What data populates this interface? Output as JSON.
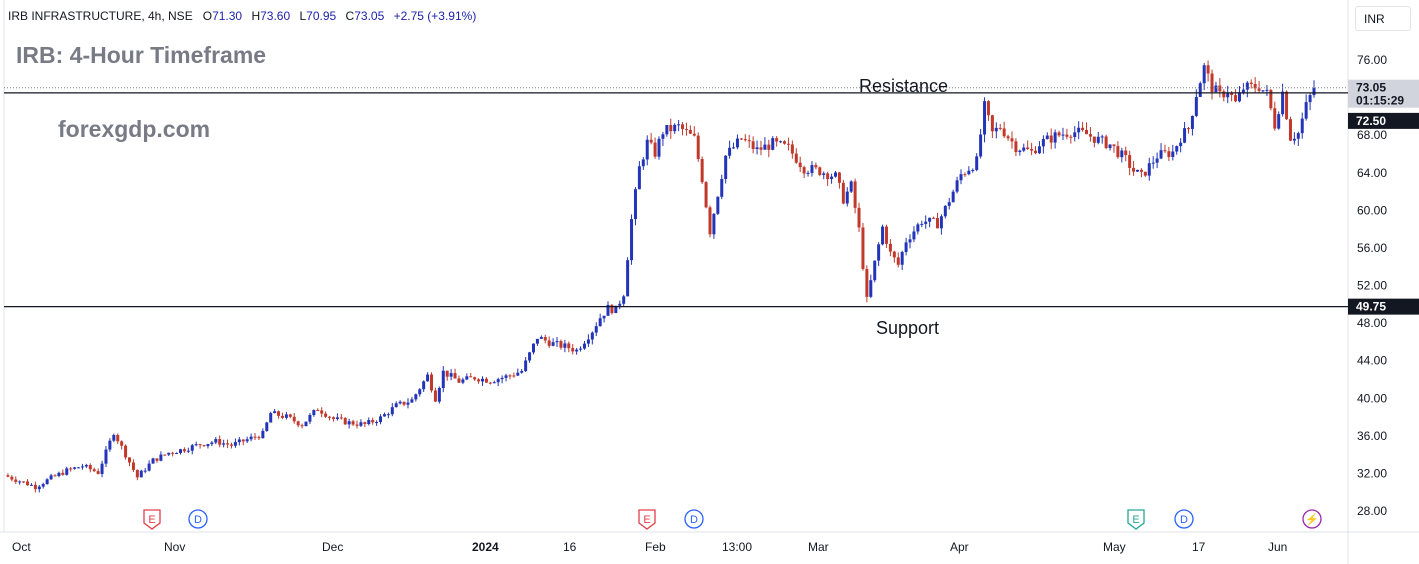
{
  "header": {
    "symbol": "IRB INFRASTRUCTURE, 4h, NSE",
    "open_label": "O",
    "open": "71.30",
    "high_label": "H",
    "high": "73.60",
    "low_label": "L",
    "low": "70.95",
    "close_label": "C",
    "close": "73.05",
    "change": "+2.75 (+3.91%)"
  },
  "title": "IRB: 4-Hour Timeframe",
  "watermark": "forexgdp.com",
  "currency": "INR",
  "annotations": {
    "resistance": "Resistance",
    "support": "Support"
  },
  "price_labels": {
    "last_price": "73.05",
    "countdown": "01:15:29",
    "resistance_level": "72.50",
    "support_level": "49.75"
  },
  "colors": {
    "up": "#2234b8",
    "down": "#c0392b",
    "axis_bg": "#ffffff",
    "last_price_bg": "#d1d4dc",
    "level_bg": "#131722"
  },
  "event_markers": [
    {
      "label": "E",
      "type": "earnings",
      "color": "#e0404a"
    },
    {
      "label": "D",
      "type": "dividend",
      "color": "#2962ff"
    },
    {
      "label": "E",
      "type": "earnings",
      "color": "#e0404a"
    },
    {
      "label": "D",
      "type": "dividend",
      "color": "#2962ff"
    },
    {
      "label": "E",
      "type": "earnings",
      "color": "#26a69a"
    },
    {
      "label": "D",
      "type": "dividend",
      "color": "#2962ff"
    },
    {
      "label": "⚡",
      "type": "flash",
      "color": "#9c27b0"
    }
  ],
  "chart_data": {
    "type": "candlestick",
    "title": "IRB: 4-Hour Timeframe",
    "y_axis_ticks": [
      "76.00",
      "72.00",
      "68.00",
      "64.00",
      "60.00",
      "56.00",
      "52.00",
      "48.00",
      "44.00",
      "40.00",
      "36.00",
      "32.00",
      "28.00"
    ],
    "ylim": [
      25,
      80
    ],
    "x_axis_ticks": [
      "Oct",
      "Nov",
      "Dec",
      "2024",
      "16",
      "Feb",
      "13:00",
      "Mar",
      "Apr",
      "May",
      "17",
      "Jun"
    ],
    "horizontal_levels": [
      {
        "name": "Resistance",
        "value": 72.5
      },
      {
        "name": "Support",
        "value": 49.75
      }
    ],
    "close_path": [
      [
        0,
        31.8
      ],
      [
        4,
        31.2
      ],
      [
        8,
        30.6
      ],
      [
        12,
        31.5
      ],
      [
        16,
        32.3
      ],
      [
        20,
        32.8
      ],
      [
        24,
        32.1
      ],
      [
        28,
        36.4
      ],
      [
        32,
        33.2
      ],
      [
        34,
        31.6
      ],
      [
        38,
        33.4
      ],
      [
        42,
        34.2
      ],
      [
        46,
        34.6
      ],
      [
        50,
        35.1
      ],
      [
        54,
        35.4
      ],
      [
        58,
        35.0
      ],
      [
        62,
        35.6
      ],
      [
        66,
        36.2
      ],
      [
        68,
        38.4
      ],
      [
        72,
        38.0
      ],
      [
        76,
        37.2
      ],
      [
        80,
        38.9
      ],
      [
        84,
        37.8
      ],
      [
        88,
        37.4
      ],
      [
        92,
        37.2
      ],
      [
        96,
        37.9
      ],
      [
        100,
        39.2
      ],
      [
        104,
        39.8
      ],
      [
        108,
        42.4
      ],
      [
        110,
        40.0
      ],
      [
        112,
        42.8
      ],
      [
        116,
        41.8
      ],
      [
        120,
        42.2
      ],
      [
        124,
        41.9
      ],
      [
        128,
        42.3
      ],
      [
        132,
        42.9
      ],
      [
        136,
        46.5
      ],
      [
        140,
        45.8
      ],
      [
        144,
        45.4
      ],
      [
        146,
        45.1
      ],
      [
        150,
        47.2
      ],
      [
        152,
        48.6
      ],
      [
        154,
        49.6
      ],
      [
        156,
        49.4
      ],
      [
        158,
        51.2
      ],
      [
        160,
        59.0
      ],
      [
        162,
        64.5
      ],
      [
        164,
        67.2
      ],
      [
        166,
        66.1
      ],
      [
        168,
        68.4
      ],
      [
        172,
        68.9
      ],
      [
        176,
        67.6
      ],
      [
        178,
        63.4
      ],
      [
        180,
        57.8
      ],
      [
        182,
        61.8
      ],
      [
        184,
        65.8
      ],
      [
        188,
        67.6
      ],
      [
        192,
        66.4
      ],
      [
        196,
        67.1
      ],
      [
        200,
        66.6
      ],
      [
        204,
        64.5
      ],
      [
        208,
        64.2
      ],
      [
        212,
        63.6
      ],
      [
        214,
        61.2
      ],
      [
        216,
        62.6
      ],
      [
        218,
        57.9
      ],
      [
        220,
        50.4
      ],
      [
        222,
        54.4
      ],
      [
        224,
        58.2
      ],
      [
        226,
        55.4
      ],
      [
        228,
        54.2
      ],
      [
        230,
        56.8
      ],
      [
        234,
        58.9
      ],
      [
        238,
        58.6
      ],
      [
        240,
        60.2
      ],
      [
        244,
        63.8
      ],
      [
        248,
        65.2
      ],
      [
        250,
        71.0
      ],
      [
        252,
        68.2
      ],
      [
        254,
        68.9
      ],
      [
        258,
        66.8
      ],
      [
        262,
        66.2
      ],
      [
        264,
        67.1
      ],
      [
        268,
        67.9
      ],
      [
        272,
        68.4
      ],
      [
        276,
        68.1
      ],
      [
        280,
        67.3
      ],
      [
        282,
        67.0
      ],
      [
        286,
        65.4
      ],
      [
        288,
        64.2
      ],
      [
        290,
        63.6
      ],
      [
        294,
        65.8
      ],
      [
        298,
        66.2
      ],
      [
        300,
        67.8
      ],
      [
        302,
        68.7
      ],
      [
        304,
        72.4
      ],
      [
        306,
        75.2
      ],
      [
        308,
        73.1
      ],
      [
        310,
        72.2
      ],
      [
        312,
        72.8
      ],
      [
        314,
        71.4
      ],
      [
        316,
        73.0
      ],
      [
        320,
        73.2
      ],
      [
        322,
        72.4
      ],
      [
        324,
        69.1
      ],
      [
        326,
        72.6
      ],
      [
        328,
        67.8
      ],
      [
        330,
        68.2
      ],
      [
        332,
        71.1
      ],
      [
        334,
        73.05
      ]
    ]
  }
}
